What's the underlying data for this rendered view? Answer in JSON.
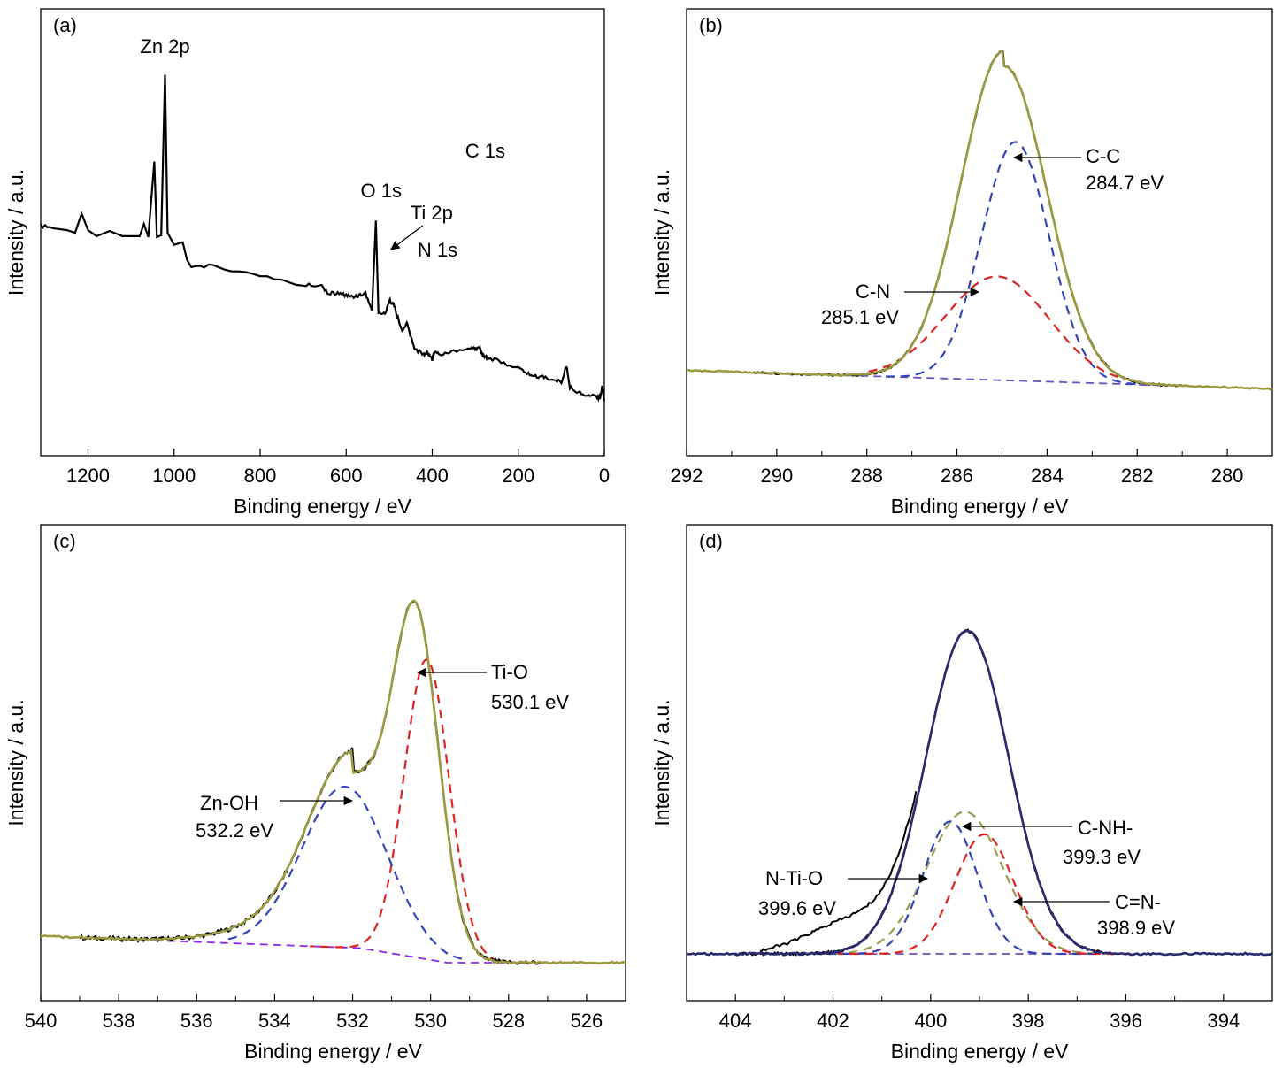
{
  "panels": [
    {
      "id": "a",
      "label": "(a)",
      "xlabel": "Binding energy / eV",
      "ylabel": "Intensity / a.u.",
      "xlim": [
        1310,
        0
      ],
      "xticks": [
        1200,
        1000,
        800,
        600,
        400,
        200,
        0
      ],
      "peaks": [
        {
          "text": "Zn 2p",
          "x": 1021
        },
        {
          "text": "O 1s",
          "x": 531
        },
        {
          "text": "Ti 2p",
          "x": 459
        },
        {
          "text": "N 1s",
          "x": 400
        },
        {
          "text": "C 1s",
          "x": 285
        }
      ]
    },
    {
      "id": "b",
      "label": "(b)",
      "xlabel": "Binding energy / eV",
      "ylabel": "Intensity / a.u.",
      "xlim": [
        292,
        279
      ],
      "xticks": [
        292,
        290,
        288,
        286,
        284,
        282,
        280
      ],
      "annotations": [
        {
          "name": "C-C",
          "energy": "284.7 eV"
        },
        {
          "name": "C-N",
          "energy": "285.1 eV"
        }
      ]
    },
    {
      "id": "c",
      "label": "(c)",
      "xlabel": "Binding energy / eV",
      "ylabel": "Intensity / a.u.",
      "xlim": [
        540,
        525
      ],
      "xticks": [
        540,
        538,
        536,
        534,
        532,
        530,
        528,
        526
      ],
      "annotations": [
        {
          "name": "Ti-O",
          "energy": "530.1 eV"
        },
        {
          "name": "Zn-OH",
          "energy": "532.2 eV"
        }
      ]
    },
    {
      "id": "d",
      "label": "(d)",
      "xlabel": "Binding energy / eV",
      "ylabel": "Intensity / a.u.",
      "xlim": [
        405,
        393
      ],
      "xticks": [
        404,
        402,
        400,
        398,
        396,
        394
      ],
      "annotations": [
        {
          "name": "C-NH-",
          "energy": "399.3 eV"
        },
        {
          "name": "N-Ti-O",
          "energy": "399.6 eV"
        },
        {
          "name": "C=N-",
          "energy": "398.9 eV"
        }
      ]
    }
  ],
  "chart_data": [
    {
      "type": "line",
      "panel": "(a)",
      "xlabel": "Binding energy / eV",
      "ylabel": "Intensity / a.u.",
      "xlim": [
        1310,
        0
      ],
      "series": [
        {
          "color": "#000000",
          "x": [
            1310,
            1280,
            1250,
            1230,
            1215,
            1200,
            1180,
            1150,
            1120,
            1100,
            1080,
            1070,
            1060,
            1046,
            1040,
            1030,
            1021,
            1015,
            1000,
            980,
            970,
            960,
            900,
            800,
            700,
            660,
            640,
            620,
            600,
            585,
            570,
            555,
            540,
            531,
            525,
            510,
            500,
            490,
            480,
            470,
            459,
            450,
            440,
            420,
            410,
            400,
            395,
            380,
            350,
            310,
            300,
            290,
            285,
            280,
            270,
            240,
            200,
            180,
            160,
            140,
            120,
            100,
            88,
            80,
            60,
            40,
            20,
            10,
            5,
            0
          ],
          "y": [
            250,
            253,
            255,
            258,
            236,
            255,
            262,
            256,
            262,
            262,
            262,
            248,
            263,
            176,
            263,
            261,
            76,
            258,
            272,
            269,
            289,
            296,
            297,
            308,
            319,
            318,
            328,
            328,
            330,
            332,
            330,
            328,
            348,
            244,
            350,
            352,
            336,
            340,
            356,
            372,
            362,
            378,
            392,
            398,
            396,
            404,
            395,
            398,
            394,
            390,
            392,
            390,
            397,
            400,
            402,
            407,
            414,
            420,
            424,
            424,
            428,
            430,
            412,
            436,
            442,
            446,
            446,
            449,
            434,
            452
          ]
        }
      ],
      "peaks": [
        {
          "text": "Zn 2p",
          "x": 1021
        },
        {
          "text": "O 1s",
          "x": 531
        },
        {
          "text": "Ti 2p",
          "x": 459
        },
        {
          "text": "N 1s",
          "x": 400
        },
        {
          "text": "C 1s",
          "x": 285
        }
      ]
    },
    {
      "type": "line",
      "panel": "(b)",
      "xlabel": "Binding energy / eV",
      "ylabel": "Intensity / a.u.",
      "xlim": [
        292,
        279
      ],
      "series": [
        {
          "role": "measured",
          "color": "#000000",
          "style": "solid",
          "mu": 284.95,
          "sigma": 0.95,
          "amp": 1.0
        },
        {
          "role": "fit envelope",
          "color": "#9a9a40",
          "style": "solid",
          "mu": 284.95,
          "sigma": 0.95,
          "amp": 1.0
        },
        {
          "role": "component",
          "name": "C-C",
          "color": "#3344bb",
          "style": "dashed",
          "mu": 284.7,
          "sigma": 0.75,
          "amp": 0.76
        },
        {
          "role": "component",
          "name": "C-N",
          "color": "#dd2222",
          "style": "dashed",
          "mu": 285.1,
          "sigma": 1.15,
          "amp": 0.33
        },
        {
          "role": "background",
          "color": "#6a4fbf",
          "style": "dashed"
        }
      ]
    },
    {
      "type": "line",
      "panel": "(c)",
      "xlabel": "Binding energy / eV",
      "ylabel": "Intensity / a.u.",
      "xlim": [
        540,
        525
      ],
      "series": [
        {
          "role": "measured",
          "color": "#000000",
          "style": "solid"
        },
        {
          "role": "fit envelope",
          "color": "#9a9a40",
          "style": "solid"
        },
        {
          "role": "component",
          "name": "Ti-O",
          "color": "#dd2222",
          "style": "dashed",
          "mu": 530.1,
          "sigma": 0.58,
          "amp": 0.82
        },
        {
          "role": "component",
          "name": "Zn-OH",
          "color": "#3344bb",
          "style": "dashed",
          "mu": 532.2,
          "sigma": 1.1,
          "amp": 0.44
        },
        {
          "role": "background",
          "color": "#8a2be2",
          "style": "dashed"
        }
      ]
    },
    {
      "type": "line",
      "panel": "(d)",
      "xlabel": "Binding energy / eV",
      "ylabel": "Intensity / a.u.",
      "xlim": [
        405,
        393
      ],
      "series": [
        {
          "role": "measured",
          "color": "#000000",
          "style": "solid"
        },
        {
          "role": "fit envelope",
          "color": "#2a2a6e",
          "style": "solid",
          "mu": 399.3,
          "sigma": 0.85,
          "amp": 1.0
        },
        {
          "role": "component",
          "name": "C-NH-",
          "color": "#9a9a50",
          "style": "dashed",
          "mu": 399.3,
          "sigma": 0.78,
          "amp": 0.44
        },
        {
          "role": "component",
          "name": "N-Ti-O",
          "color": "#3344bb",
          "style": "dashed",
          "mu": 399.6,
          "sigma": 0.55,
          "amp": 0.41
        },
        {
          "role": "component",
          "name": "C=N-",
          "color": "#dd2222",
          "style": "dashed",
          "mu": 398.9,
          "sigma": 0.6,
          "amp": 0.37
        },
        {
          "role": "background",
          "color": "#6a4fbf",
          "style": "dashed"
        }
      ]
    }
  ]
}
